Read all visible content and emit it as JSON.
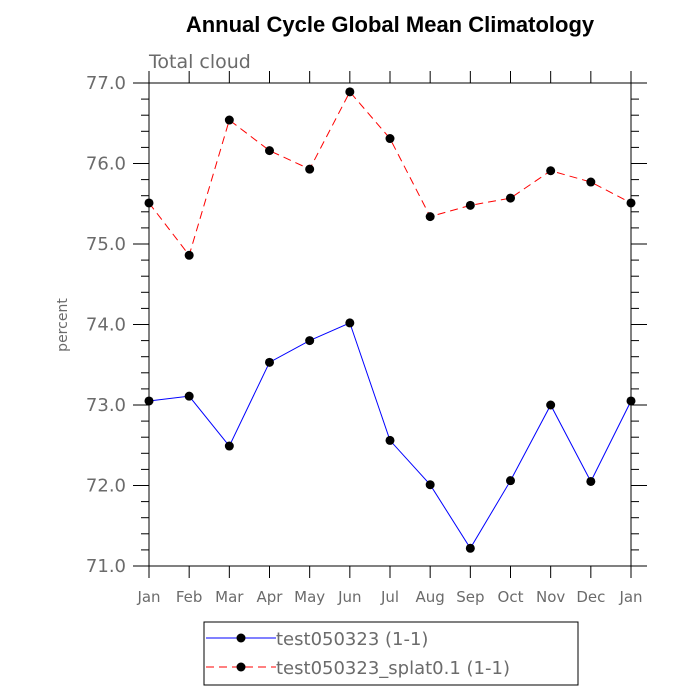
{
  "chart_data": {
    "type": "line",
    "title": "Annual Cycle Global Mean Climatology",
    "subtitle": "Total cloud",
    "xlabel": "",
    "ylabel": "percent",
    "categories": [
      "Jan",
      "Feb",
      "Mar",
      "Apr",
      "May",
      "Jun",
      "Jul",
      "Aug",
      "Sep",
      "Oct",
      "Nov",
      "Dec",
      "Jan"
    ],
    "ylim": [
      71.0,
      77.0
    ],
    "yticks": [
      "71.0",
      "72.0",
      "73.0",
      "74.0",
      "75.0",
      "76.0",
      "77.0"
    ],
    "grid": false,
    "legend_position": "bottom",
    "series": [
      {
        "name": "test050323 (1-1)",
        "color": "#0000ff",
        "dash": "solid",
        "values": [
          73.05,
          73.11,
          72.49,
          73.53,
          73.8,
          74.02,
          72.56,
          72.01,
          71.22,
          72.06,
          73.0,
          72.05,
          73.05
        ]
      },
      {
        "name": "test050323_splat0.1 (1-1)",
        "color": "#ff0000",
        "dash": "dashed",
        "values": [
          75.51,
          74.86,
          76.54,
          76.16,
          75.93,
          76.89,
          76.31,
          75.34,
          75.48,
          75.57,
          75.91,
          75.77,
          75.51
        ]
      }
    ]
  }
}
